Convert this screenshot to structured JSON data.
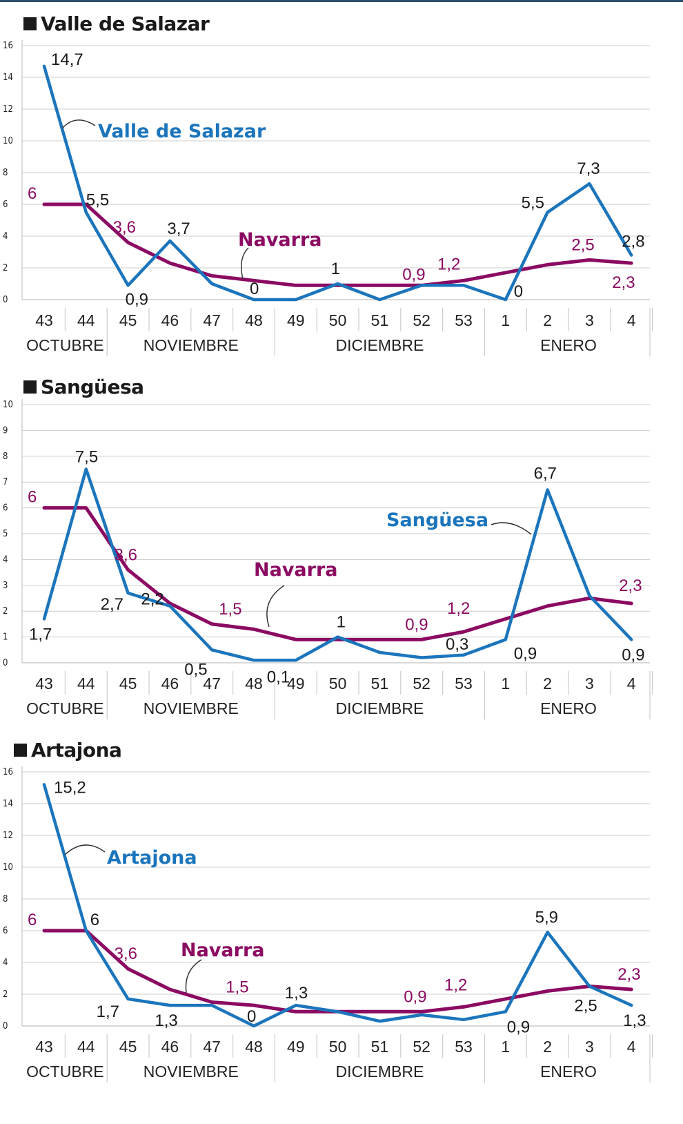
{
  "colors": {
    "local": "#1b75bc",
    "navarra": "#8b0a62",
    "grid": "#cccccc",
    "topbar": "#2d4f6a"
  },
  "chart_data": [
    {
      "type": "line",
      "title": "Valle de Salazar",
      "categories": [
        "43",
        "44",
        "45",
        "46",
        "47",
        "48",
        "49",
        "50",
        "51",
        "52",
        "53",
        "1",
        "2",
        "3",
        "4"
      ],
      "months": [
        "OCTUBRE",
        "NOVIEMBRE",
        "DICIEMBRE",
        "ENERO"
      ],
      "yticks": [
        "0",
        "2",
        "4",
        "6",
        "8",
        "10",
        "12",
        "14",
        "16"
      ],
      "ylim": [
        0,
        16
      ],
      "grid": true,
      "series": [
        {
          "name": "Valle de Salazar",
          "values": [
            14.7,
            5.5,
            0.9,
            3.7,
            1.0,
            0.0,
            0.0,
            1.0,
            0.0,
            0.9,
            0.9,
            0.0,
            5.5,
            7.3,
            2.8
          ]
        },
        {
          "name": "Navarra",
          "values": [
            6.0,
            6.0,
            3.6,
            2.3,
            1.5,
            1.2,
            0.9,
            0.9,
            0.9,
            0.9,
            1.2,
            1.7,
            2.2,
            2.5,
            2.3
          ]
        }
      ],
      "labels": [
        {
          "i": 0,
          "s": 0,
          "text": "14,7"
        },
        {
          "i": 1,
          "s": 0,
          "text": "5,5"
        },
        {
          "i": 2,
          "s": 0,
          "text": "0,9"
        },
        {
          "i": 3,
          "s": 0,
          "text": "3,7"
        },
        {
          "i": 5,
          "s": 0,
          "text": "0"
        },
        {
          "i": 7,
          "s": 0,
          "text": "1"
        },
        {
          "i": 11,
          "s": 0,
          "text": "0"
        },
        {
          "i": 12,
          "s": 0,
          "text": "5,5"
        },
        {
          "i": 13,
          "s": 0,
          "text": "7,3"
        },
        {
          "i": 14,
          "s": 0,
          "text": "2,8"
        },
        {
          "i": 0,
          "s": 1,
          "text": "6"
        },
        {
          "i": 2,
          "s": 1,
          "text": "3,6"
        },
        {
          "i": 9,
          "s": 1,
          "text": "0,9"
        },
        {
          "i": 10,
          "s": 1,
          "text": "1,2"
        },
        {
          "i": 13,
          "s": 1,
          "text": "2,5"
        },
        {
          "i": 14,
          "s": 1,
          "text": "2,3"
        }
      ]
    },
    {
      "type": "line",
      "title": "Sangüesa",
      "categories": [
        "43",
        "44",
        "45",
        "46",
        "47",
        "48",
        "49",
        "50",
        "51",
        "52",
        "53",
        "1",
        "2",
        "3",
        "4"
      ],
      "months": [
        "OCTUBRE",
        "NOVIEMBRE",
        "DICIEMBRE",
        "ENERO"
      ],
      "yticks": [
        "0",
        "1",
        "2",
        "3",
        "4",
        "5",
        "6",
        "7",
        "8",
        "9",
        "10"
      ],
      "ylim": [
        0,
        10
      ],
      "grid": true,
      "series": [
        {
          "name": "Sangüesa",
          "values": [
            1.7,
            7.5,
            2.7,
            2.2,
            0.5,
            0.1,
            0.1,
            1.0,
            0.4,
            0.2,
            0.3,
            0.9,
            6.7,
            2.6,
            0.9
          ]
        },
        {
          "name": "Navarra",
          "values": [
            6.0,
            6.0,
            3.6,
            2.3,
            1.5,
            1.3,
            0.9,
            0.9,
            0.9,
            0.9,
            1.2,
            1.7,
            2.2,
            2.5,
            2.3
          ]
        }
      ],
      "labels": [
        {
          "i": 0,
          "s": 0,
          "text": "1,7"
        },
        {
          "i": 1,
          "s": 0,
          "text": "7,5"
        },
        {
          "i": 2,
          "s": 0,
          "text": "2,7"
        },
        {
          "i": 3,
          "s": 0,
          "text": "2,2"
        },
        {
          "i": 4,
          "s": 0,
          "text": "0,5"
        },
        {
          "i": 6,
          "s": 0,
          "text": "0,1"
        },
        {
          "i": 7,
          "s": 0,
          "text": "1"
        },
        {
          "i": 10,
          "s": 0,
          "text": "0,3"
        },
        {
          "i": 11,
          "s": 0,
          "text": "0,9"
        },
        {
          "i": 12,
          "s": 0,
          "text": "6,7"
        },
        {
          "i": 14,
          "s": 0,
          "text": "0,9"
        },
        {
          "i": 0,
          "s": 1,
          "text": "6"
        },
        {
          "i": 2,
          "s": 1,
          "text": "3,6"
        },
        {
          "i": 4,
          "s": 1,
          "text": "1,5"
        },
        {
          "i": 9,
          "s": 1,
          "text": "0,9"
        },
        {
          "i": 10,
          "s": 1,
          "text": "1,2"
        },
        {
          "i": 14,
          "s": 1,
          "text": "2,3"
        }
      ]
    },
    {
      "type": "line",
      "title": "Artajona",
      "categories": [
        "43",
        "44",
        "45",
        "46",
        "47",
        "48",
        "49",
        "50",
        "51",
        "52",
        "53",
        "1",
        "2",
        "3",
        "4"
      ],
      "months": [
        "OCTUBRE",
        "NOVIEMBRE",
        "DICIEMBRE",
        "ENERO"
      ],
      "yticks": [
        "0",
        "2",
        "4",
        "6",
        "8",
        "10",
        "12",
        "14",
        "16"
      ],
      "ylim": [
        0,
        16
      ],
      "grid": true,
      "series": [
        {
          "name": "Artajona",
          "values": [
            15.2,
            6.0,
            1.7,
            1.3,
            1.3,
            0.0,
            1.3,
            0.9,
            0.3,
            0.7,
            0.4,
            0.9,
            5.9,
            2.5,
            1.3
          ]
        },
        {
          "name": "Navarra",
          "values": [
            6.0,
            6.0,
            3.6,
            2.3,
            1.5,
            1.3,
            0.9,
            0.9,
            0.9,
            0.9,
            1.2,
            1.7,
            2.2,
            2.5,
            2.3
          ]
        }
      ],
      "labels": [
        {
          "i": 0,
          "s": 0,
          "text": "15,2"
        },
        {
          "i": 1,
          "s": 0,
          "text": "6"
        },
        {
          "i": 2,
          "s": 0,
          "text": "1,7"
        },
        {
          "i": 3,
          "s": 0,
          "text": "1,3"
        },
        {
          "i": 5,
          "s": 0,
          "text": "0"
        },
        {
          "i": 6,
          "s": 0,
          "text": "1,3"
        },
        {
          "i": 11,
          "s": 0,
          "text": "0,9"
        },
        {
          "i": 12,
          "s": 0,
          "text": "5,9"
        },
        {
          "i": 13,
          "s": 0,
          "text": "2,5"
        },
        {
          "i": 14,
          "s": 0,
          "text": "1,3"
        },
        {
          "i": 0,
          "s": 1,
          "text": "6"
        },
        {
          "i": 2,
          "s": 1,
          "text": "3,6"
        },
        {
          "i": 4,
          "s": 1,
          "text": "1,5"
        },
        {
          "i": 9,
          "s": 1,
          "text": "0,9"
        },
        {
          "i": 10,
          "s": 1,
          "text": "1,2"
        },
        {
          "i": 14,
          "s": 1,
          "text": "2,3"
        }
      ]
    }
  ]
}
